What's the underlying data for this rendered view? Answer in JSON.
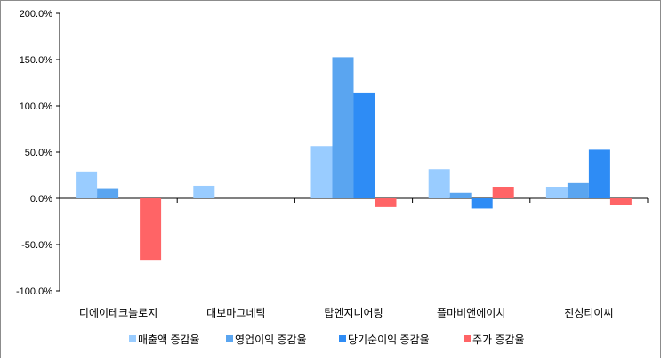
{
  "chart_data": {
    "type": "bar",
    "title": "",
    "xlabel": "",
    "ylabel": "",
    "categories": [
      "디에이테크놀로지",
      "대보마그네틱",
      "탑엔지니어링",
      "플마비앤에이치",
      "진성티이씨"
    ],
    "series": [
      {
        "name": "매출액 증감율",
        "color": "#99ccff",
        "values": [
          29,
          13.5,
          56.5,
          31.5,
          12.5
        ]
      },
      {
        "name": "영업이익 증감율",
        "color": "#5aa5f0",
        "values": [
          11,
          null,
          152.5,
          6,
          16.5
        ]
      },
      {
        "name": "당기순이익 증감율",
        "color": "#2e8cf5",
        "values": [
          null,
          null,
          114.5,
          -11,
          52.5
        ]
      },
      {
        "name": "주가 증감율",
        "color": "#ff6466",
        "values": [
          -66.5,
          null,
          -9.5,
          12.5,
          -7
        ]
      }
    ],
    "ylim": [
      -100,
      200
    ],
    "yticks": [
      -100,
      -50,
      0,
      50,
      100,
      150,
      200
    ],
    "ytick_labels": [
      "-100.0%",
      "-50.0%",
      "0.0%",
      "50.0%",
      "100.0%",
      "150.0%",
      "200.0%"
    ],
    "grid": false,
    "legend_position": "bottom"
  }
}
